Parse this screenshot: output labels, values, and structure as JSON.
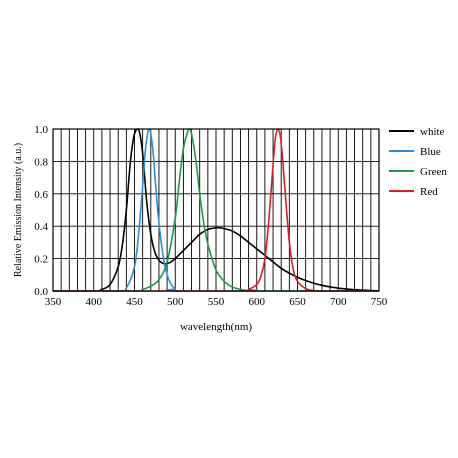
{
  "chart_data": {
    "type": "line",
    "title": "",
    "xlabel": "wavelength(nm)",
    "ylabel": "Relative Emission Intensity (a.u.)",
    "xlim": [
      350,
      750
    ],
    "ylim": [
      0,
      1.0
    ],
    "x_ticks": [
      350,
      400,
      450,
      500,
      550,
      600,
      650,
      700,
      750
    ],
    "y_ticks": [
      0.0,
      0.2,
      0.4,
      0.6,
      0.8,
      1.0
    ],
    "x_tick_labels": [
      "350",
      "400",
      "450",
      "500",
      "550",
      "600",
      "650",
      "700",
      "750"
    ],
    "y_tick_labels": [
      "0.0",
      "0.2",
      "0.4",
      "0.6",
      "0.8",
      "1.0"
    ],
    "grid": true,
    "legend_position": "right",
    "series": [
      {
        "name": "white",
        "color": "#000000",
        "x": [
          350,
          400,
          410,
          420,
          430,
          435,
          440,
          445,
          450,
          455,
          460,
          465,
          470,
          475,
          480,
          485,
          490,
          495,
          500,
          510,
          520,
          530,
          540,
          550,
          555,
          560,
          570,
          580,
          590,
          600,
          610,
          620,
          630,
          640,
          650,
          660,
          670,
          680,
          690,
          700,
          710,
          720,
          730,
          740,
          750
        ],
        "y": [
          0.0,
          0.0,
          0.01,
          0.04,
          0.15,
          0.28,
          0.5,
          0.8,
          0.97,
          1.0,
          0.85,
          0.55,
          0.35,
          0.24,
          0.19,
          0.17,
          0.17,
          0.18,
          0.2,
          0.25,
          0.3,
          0.35,
          0.38,
          0.39,
          0.39,
          0.385,
          0.37,
          0.34,
          0.3,
          0.26,
          0.22,
          0.18,
          0.14,
          0.11,
          0.085,
          0.065,
          0.048,
          0.035,
          0.025,
          0.018,
          0.012,
          0.008,
          0.005,
          0.003,
          0.002
        ]
      },
      {
        "name": "Blue",
        "color": "#2a8fd6",
        "x": [
          350,
          430,
          440,
          450,
          455,
          460,
          463,
          466,
          468,
          470,
          473,
          476,
          480,
          485,
          490,
          495,
          500,
          510,
          750
        ],
        "y": [
          0.0,
          0.0,
          0.02,
          0.15,
          0.35,
          0.65,
          0.85,
          0.97,
          1.0,
          0.97,
          0.85,
          0.65,
          0.42,
          0.22,
          0.1,
          0.04,
          0.015,
          0.0,
          0.0
        ]
      },
      {
        "name": "Green",
        "color": "#1a9a4a",
        "x": [
          350,
          450,
          460,
          470,
          480,
          490,
          500,
          505,
          510,
          515,
          518,
          520,
          525,
          530,
          535,
          540,
          550,
          560,
          570,
          580,
          590,
          600,
          750
        ],
        "y": [
          0.0,
          0.0,
          0.01,
          0.03,
          0.07,
          0.18,
          0.45,
          0.68,
          0.88,
          0.98,
          1.0,
          0.97,
          0.82,
          0.6,
          0.42,
          0.29,
          0.13,
          0.06,
          0.025,
          0.01,
          0.003,
          0.0,
          0.0
        ]
      },
      {
        "name": "Red",
        "color": "#d6202a",
        "x": [
          350,
          580,
          590,
          600,
          605,
          610,
          615,
          620,
          623,
          626,
          629,
          632,
          635,
          640,
          645,
          650,
          660,
          670,
          680,
          750
        ],
        "y": [
          0.0,
          0.0,
          0.01,
          0.04,
          0.09,
          0.2,
          0.45,
          0.78,
          0.95,
          1.0,
          0.95,
          0.8,
          0.6,
          0.3,
          0.13,
          0.06,
          0.015,
          0.003,
          0.0,
          0.0
        ]
      }
    ]
  }
}
